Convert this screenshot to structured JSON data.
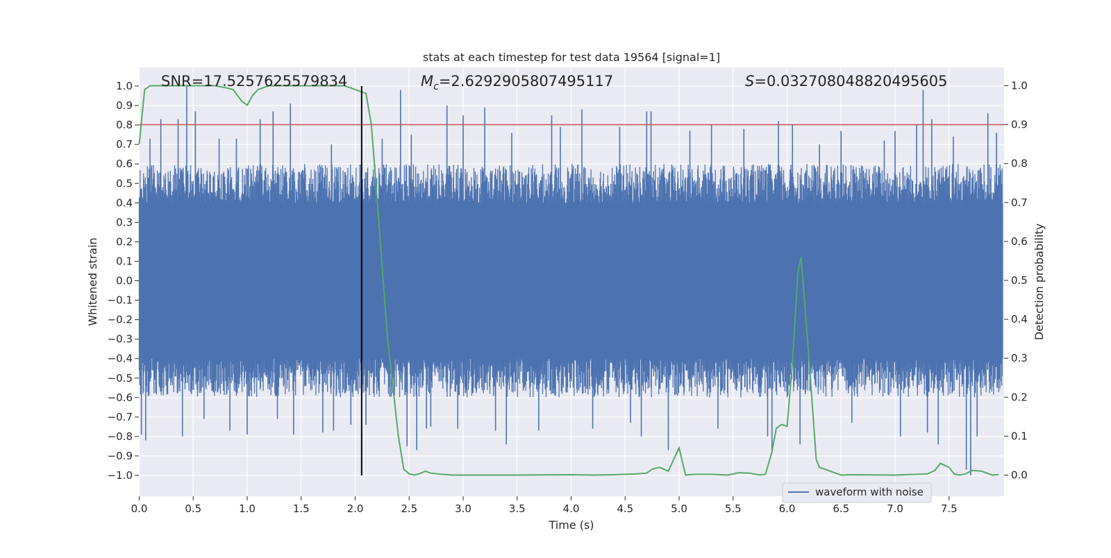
{
  "chart_data": {
    "type": "line",
    "title": "stats at each timestep for test data 19564 [signal=1]",
    "xlabel": "Time (s)",
    "ylabel_left": "Whitened strain",
    "ylabel_right": "Detection probability",
    "xlim": [
      0.0,
      8.0
    ],
    "ylim_left": [
      -1.1,
      1.1
    ],
    "ylim_right": [
      -0.05,
      1.05
    ],
    "x_ticks": [
      "0.0",
      "0.5",
      "1.0",
      "1.5",
      "2.0",
      "2.5",
      "3.0",
      "3.5",
      "4.0",
      "4.5",
      "5.0",
      "5.5",
      "6.0",
      "6.5",
      "7.0",
      "7.5"
    ],
    "y_left_ticks": [
      "1.0",
      "0.9",
      "0.8",
      "0.7",
      "0.6",
      "0.5",
      "0.4",
      "0.3",
      "0.2",
      "0.1",
      "0.0",
      "−0.1",
      "−0.2",
      "−0.3",
      "−0.4",
      "−0.5",
      "−0.6",
      "−0.7",
      "−0.8",
      "−0.9",
      "−1.0"
    ],
    "y_right_ticks": [
      "1.0",
      "0.9",
      "0.8",
      "0.7",
      "0.6",
      "0.5",
      "0.4",
      "0.3",
      "0.2",
      "0.1",
      "0.0"
    ],
    "grid": true,
    "legend_position": "lower-right",
    "annotations": {
      "snr": "SNR=17.5257625579834",
      "mc_symbol": "M",
      "mc_sub": "c",
      "mc_value": "=2.6292905807495117",
      "s_symbol": "S",
      "s_value": "=0.032708048820495605"
    },
    "threshold": {
      "value": 0.9,
      "axis": "right",
      "color": "#c44e52"
    },
    "marker_time": 2.06,
    "waveform": {
      "name": "waveform with noise",
      "color": "#4c72b0",
      "core_band": [
        -0.4,
        0.4
      ],
      "peak_range_typical": [
        -0.6,
        0.6
      ],
      "spikes": [
        {
          "x": 0.02,
          "y": -0.79
        },
        {
          "x": 0.06,
          "y": -0.82
        },
        {
          "x": 0.1,
          "y": 0.73
        },
        {
          "x": 0.2,
          "y": 0.83
        },
        {
          "x": 0.36,
          "y": 0.83
        },
        {
          "x": 0.4,
          "y": -0.8
        },
        {
          "x": 0.44,
          "y": 1.0
        },
        {
          "x": 0.52,
          "y": 0.87
        },
        {
          "x": 0.6,
          "y": -0.71
        },
        {
          "x": 0.74,
          "y": 0.73
        },
        {
          "x": 0.84,
          "y": -0.77
        },
        {
          "x": 0.9,
          "y": 0.73
        },
        {
          "x": 1.0,
          "y": -0.79
        },
        {
          "x": 1.12,
          "y": 0.83
        },
        {
          "x": 1.24,
          "y": 0.87
        },
        {
          "x": 1.28,
          "y": -0.71
        },
        {
          "x": 1.4,
          "y": 0.91
        },
        {
          "x": 1.43,
          "y": -0.79
        },
        {
          "x": 1.7,
          "y": -0.78
        },
        {
          "x": 1.78,
          "y": 0.7
        },
        {
          "x": 1.8,
          "y": -0.77
        },
        {
          "x": 1.96,
          "y": -0.74
        },
        {
          "x": 2.1,
          "y": -0.74
        },
        {
          "x": 2.25,
          "y": 0.73
        },
        {
          "x": 2.42,
          "y": 0.98
        },
        {
          "x": 2.48,
          "y": -0.85
        },
        {
          "x": 2.52,
          "y": 0.75
        },
        {
          "x": 2.57,
          "y": -0.87
        },
        {
          "x": 2.66,
          "y": -0.76
        },
        {
          "x": 2.7,
          "y": -0.75
        },
        {
          "x": 2.85,
          "y": 0.9
        },
        {
          "x": 2.95,
          "y": -0.76
        },
        {
          "x": 3.0,
          "y": 0.85
        },
        {
          "x": 3.2,
          "y": 0.89
        },
        {
          "x": 3.3,
          "y": -0.77
        },
        {
          "x": 3.4,
          "y": -0.84
        },
        {
          "x": 3.45,
          "y": 0.76
        },
        {
          "x": 3.7,
          "y": -0.77
        },
        {
          "x": 3.82,
          "y": 0.85
        },
        {
          "x": 3.9,
          "y": 0.79
        },
        {
          "x": 4.1,
          "y": 0.88
        },
        {
          "x": 4.2,
          "y": -0.76
        },
        {
          "x": 4.45,
          "y": 0.79
        },
        {
          "x": 4.55,
          "y": -0.73
        },
        {
          "x": 4.65,
          "y": -0.8
        },
        {
          "x": 4.7,
          "y": 0.87
        },
        {
          "x": 4.74,
          "y": 0.87
        },
        {
          "x": 4.9,
          "y": -0.87
        },
        {
          "x": 5.1,
          "y": 0.77
        },
        {
          "x": 5.3,
          "y": 0.8
        },
        {
          "x": 5.36,
          "y": -0.76
        },
        {
          "x": 5.6,
          "y": 0.78
        },
        {
          "x": 5.82,
          "y": -0.8
        },
        {
          "x": 5.86,
          "y": -0.87
        },
        {
          "x": 5.92,
          "y": 0.82
        },
        {
          "x": 6.05,
          "y": 0.8
        },
        {
          "x": 6.12,
          "y": -0.84
        },
        {
          "x": 6.3,
          "y": 0.7
        },
        {
          "x": 6.5,
          "y": 0.77
        },
        {
          "x": 6.6,
          "y": -0.73
        },
        {
          "x": 6.9,
          "y": 0.72
        },
        {
          "x": 7.0,
          "y": 0.77
        },
        {
          "x": 7.05,
          "y": -0.8
        },
        {
          "x": 7.2,
          "y": 0.8
        },
        {
          "x": 7.26,
          "y": 0.98
        },
        {
          "x": 7.3,
          "y": -0.78
        },
        {
          "x": 7.34,
          "y": 0.83
        },
        {
          "x": 7.4,
          "y": -0.84
        },
        {
          "x": 7.54,
          "y": 0.74
        },
        {
          "x": 7.66,
          "y": -0.97
        },
        {
          "x": 7.7,
          "y": -1.0
        },
        {
          "x": 7.76,
          "y": -0.8
        },
        {
          "x": 7.86,
          "y": 0.86
        },
        {
          "x": 7.94,
          "y": 0.76
        }
      ]
    },
    "detection_probability": {
      "color": "#55a868",
      "x": [
        0.0,
        0.05,
        0.1,
        0.15,
        0.2,
        0.3,
        0.4,
        0.5,
        0.6,
        0.7,
        0.8,
        0.87,
        0.95,
        1.0,
        1.05,
        1.1,
        1.2,
        1.3,
        1.4,
        1.5,
        1.6,
        1.7,
        1.8,
        1.9,
        2.0,
        2.05,
        2.1,
        2.15,
        2.2,
        2.3,
        2.4,
        2.45,
        2.5,
        2.55,
        2.6,
        2.65,
        2.7,
        2.8,
        2.9,
        3.0,
        3.5,
        4.0,
        4.2,
        4.4,
        4.5,
        4.6,
        4.7,
        4.75,
        4.82,
        4.9,
        5.0,
        5.06,
        5.15,
        5.3,
        5.45,
        5.55,
        5.65,
        5.75,
        5.8,
        5.86,
        5.9,
        5.95,
        6.0,
        6.05,
        6.1,
        6.13,
        6.2,
        6.27,
        6.3,
        6.4,
        6.5,
        6.6,
        7.0,
        7.3,
        7.37,
        7.42,
        7.5,
        7.55,
        7.6,
        7.65,
        7.72,
        7.8,
        7.9,
        7.96
      ],
      "y": [
        0.85,
        0.99,
        1.0,
        1.0,
        1.0,
        1.0,
        1.0,
        1.0,
        1.0,
        1.0,
        0.995,
        0.99,
        0.96,
        0.95,
        0.975,
        0.99,
        1.0,
        1.0,
        1.0,
        1.0,
        1.0,
        1.0,
        1.0,
        1.0,
        0.99,
        0.985,
        0.98,
        0.9,
        0.72,
        0.35,
        0.1,
        0.015,
        0.003,
        0.0,
        0.004,
        0.01,
        0.005,
        0.002,
        0.0,
        0.0,
        0.0,
        0.001,
        0.0,
        0.001,
        0.002,
        0.003,
        0.005,
        0.015,
        0.02,
        0.01,
        0.07,
        0.0,
        0.002,
        0.002,
        0.0,
        0.006,
        0.005,
        0.0,
        0.002,
        0.06,
        0.12,
        0.13,
        0.125,
        0.29,
        0.52,
        0.56,
        0.31,
        0.04,
        0.02,
        0.01,
        0.0,
        0.001,
        0.0,
        0.003,
        0.012,
        0.03,
        0.02,
        0.002,
        0.0,
        0.003,
        0.012,
        0.01,
        0.0,
        0.001
      ]
    }
  }
}
